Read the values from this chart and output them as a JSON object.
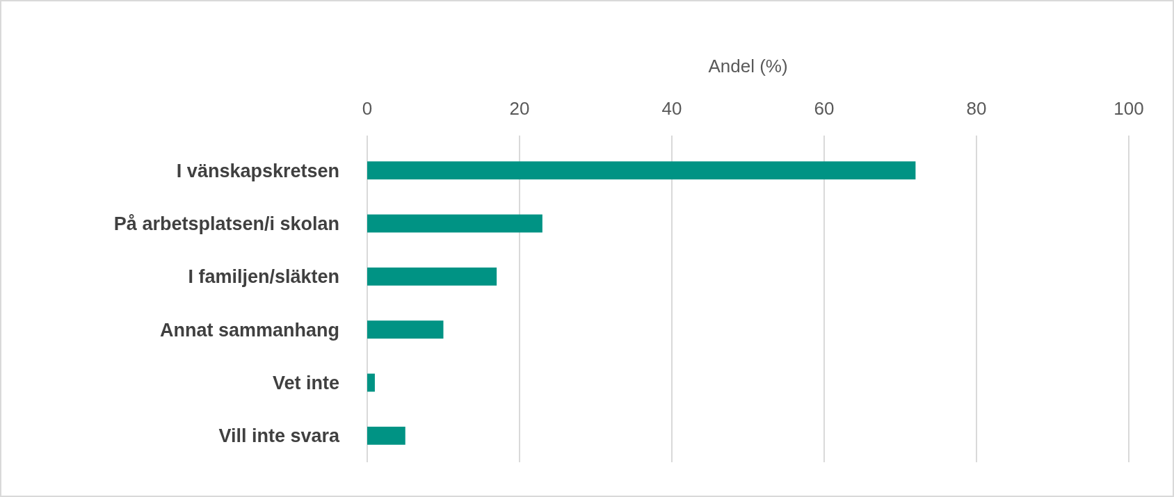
{
  "chart_data": {
    "type": "bar",
    "orientation": "horizontal",
    "xlabel": "Andel (%)",
    "categories": [
      "I vänskapskretsen",
      "På arbetsplatsen/i skolan",
      "I familjen/släkten",
      "Annat sammanhang",
      "Vet inte",
      "Vill inte svara"
    ],
    "values": [
      72,
      23,
      17,
      10,
      1,
      5
    ],
    "color": "#009384",
    "xlim": [
      0,
      100
    ],
    "xticks": [
      0,
      20,
      40,
      60,
      80,
      100
    ],
    "grid": "x"
  }
}
